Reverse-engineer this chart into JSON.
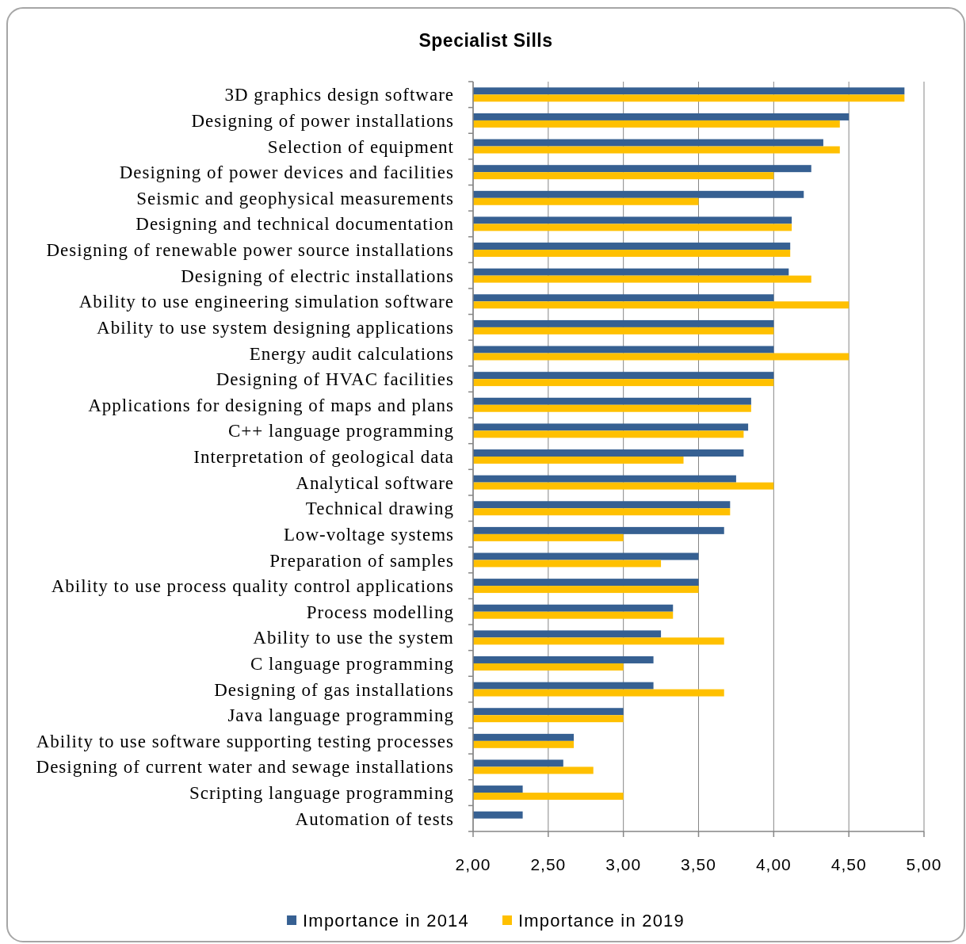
{
  "chart_data": {
    "type": "bar",
    "orientation": "horizontal",
    "title": "Specialist Sills",
    "categories": [
      "3D graphics design software",
      "Designing of power installations",
      "Selection of equipment",
      "Designing of power devices and facilities",
      "Seismic and geophysical measurements",
      "Designing and technical documentation",
      "Designing of renewable power source installations",
      "Designing of electric installations",
      "Ability to use engineering simulation software",
      "Ability to use system designing applications",
      "Energy audit calculations",
      "Designing of HVAC facilities",
      "Applications for designing of maps and plans",
      "C++ language programming",
      "Interpretation of geological data",
      "Analytical software",
      "Technical drawing",
      "Low-voltage systems",
      "Preparation of samples",
      "Ability to use process quality control applications",
      "Process modelling",
      "Ability to use the system",
      "C language programming",
      "Designing of gas installations",
      "Java language programming",
      "Ability to use software supporting testing processes",
      "Designing of current water and sewage installations",
      "Scripting language programming",
      "Automation of tests"
    ],
    "series": [
      {
        "name": "Importance in 2014",
        "color": "#366092",
        "values": [
          4.87,
          4.5,
          4.33,
          4.25,
          4.2,
          4.12,
          4.11,
          4.1,
          4,
          4,
          4,
          4,
          3.85,
          3.83,
          3.8,
          3.75,
          3.71,
          3.67,
          3.5,
          3.5,
          3.33,
          3.25,
          3.2,
          3.2,
          3,
          2.67,
          2.6,
          2.33,
          2.33
        ]
      },
      {
        "name": "Importance in 2019",
        "color": "#ffc000",
        "values": [
          4.87,
          4.44,
          4.44,
          4,
          3.5,
          4.12,
          4.11,
          4.25,
          4.5,
          4,
          4.5,
          4,
          3.85,
          3.8,
          3.4,
          4,
          3.71,
          3,
          3.25,
          3.5,
          3.33,
          3.67,
          3,
          3.67,
          3,
          2.67,
          2.8,
          3,
          null
        ]
      }
    ],
    "xlim": [
      2,
      5
    ],
    "xticks": [
      {
        "value": 2,
        "label": "2,00"
      },
      {
        "value": 2.5,
        "label": "2,50"
      },
      {
        "value": 3,
        "label": "3,00"
      },
      {
        "value": 3.5,
        "label": "3,50"
      },
      {
        "value": 4,
        "label": "4,00"
      },
      {
        "value": 4.5,
        "label": "4,50"
      },
      {
        "value": 5,
        "label": "5,00"
      }
    ],
    "grid": "x",
    "legend": "bottom"
  }
}
